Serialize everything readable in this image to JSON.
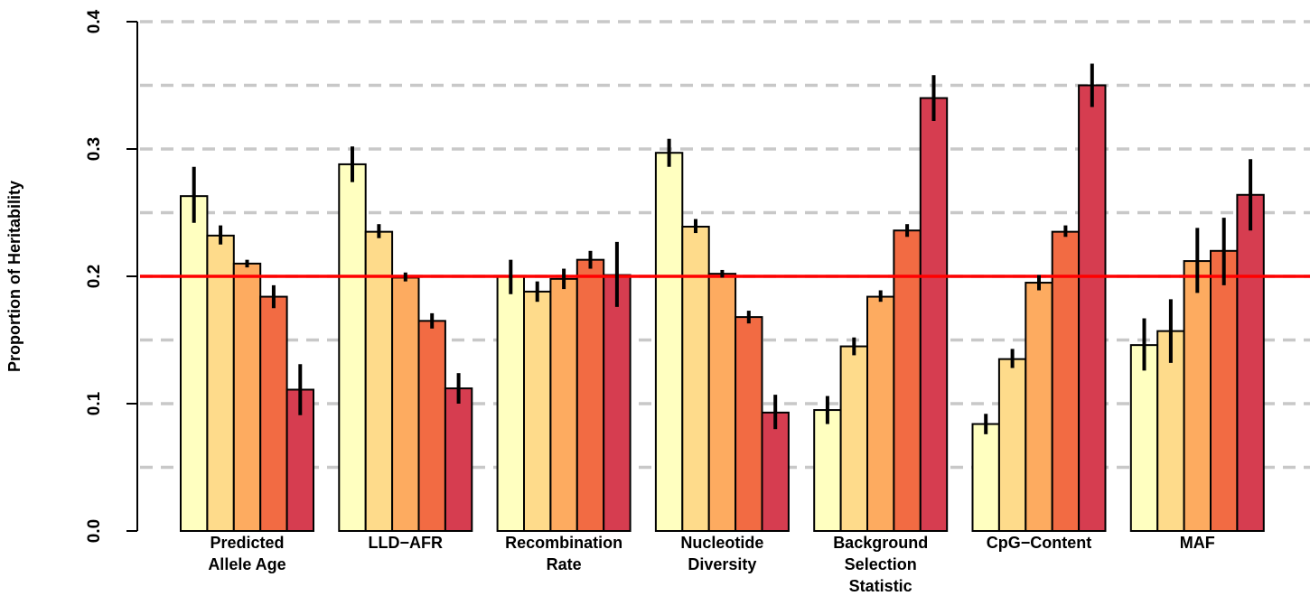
{
  "chart_data": {
    "type": "bar",
    "title": "",
    "xlabel": "",
    "ylabel": "Proportion of Heritability",
    "ylim": [
      0,
      0.4
    ],
    "yticks": [
      {
        "value": 0.0,
        "label": "0.0"
      },
      {
        "value": 0.1,
        "label": "0.1"
      },
      {
        "value": 0.2,
        "label": "0.2"
      },
      {
        "value": 0.3,
        "label": "0.3"
      },
      {
        "value": 0.4,
        "label": "0.4"
      }
    ],
    "grid": {
      "dashed_horizontal": true,
      "step": 0.05,
      "color": "#c8c8c8"
    },
    "reference_line": {
      "value": 0.2,
      "color": "#ff0000"
    },
    "series_colors": [
      "#ffffc0",
      "#fedb8b",
      "#fdab60",
      "#f26b43",
      "#d63d50"
    ],
    "groups": [
      {
        "label_lines": [
          "Predicted",
          "Allele Age"
        ],
        "bars": [
          {
            "value": 0.263,
            "low": 0.242,
            "high": 0.286
          },
          {
            "value": 0.232,
            "low": 0.225,
            "high": 0.24
          },
          {
            "value": 0.21,
            "low": 0.207,
            "high": 0.213
          },
          {
            "value": 0.184,
            "low": 0.175,
            "high": 0.193
          },
          {
            "value": 0.111,
            "low": 0.091,
            "high": 0.131
          }
        ]
      },
      {
        "label_lines": [
          "LLD−AFR"
        ],
        "bars": [
          {
            "value": 0.288,
            "low": 0.274,
            "high": 0.302
          },
          {
            "value": 0.235,
            "low": 0.23,
            "high": 0.241
          },
          {
            "value": 0.199,
            "low": 0.196,
            "high": 0.203
          },
          {
            "value": 0.165,
            "low": 0.159,
            "high": 0.171
          },
          {
            "value": 0.112,
            "low": 0.1,
            "high": 0.124
          }
        ]
      },
      {
        "label_lines": [
          "Recombination",
          "Rate"
        ],
        "bars": [
          {
            "value": 0.2,
            "low": 0.186,
            "high": 0.213
          },
          {
            "value": 0.188,
            "low": 0.18,
            "high": 0.196
          },
          {
            "value": 0.198,
            "low": 0.19,
            "high": 0.206
          },
          {
            "value": 0.213,
            "low": 0.206,
            "high": 0.22
          },
          {
            "value": 0.201,
            "low": 0.176,
            "high": 0.227
          }
        ]
      },
      {
        "label_lines": [
          "Nucleotide",
          "Diversity"
        ],
        "bars": [
          {
            "value": 0.297,
            "low": 0.286,
            "high": 0.308
          },
          {
            "value": 0.239,
            "low": 0.234,
            "high": 0.245
          },
          {
            "value": 0.202,
            "low": 0.199,
            "high": 0.205
          },
          {
            "value": 0.168,
            "low": 0.163,
            "high": 0.173
          },
          {
            "value": 0.093,
            "low": 0.08,
            "high": 0.107
          }
        ]
      },
      {
        "label_lines": [
          "Background",
          "Selection",
          "Statistic"
        ],
        "bars": [
          {
            "value": 0.095,
            "low": 0.084,
            "high": 0.106
          },
          {
            "value": 0.145,
            "low": 0.138,
            "high": 0.152
          },
          {
            "value": 0.184,
            "low": 0.18,
            "high": 0.189
          },
          {
            "value": 0.236,
            "low": 0.231,
            "high": 0.241
          },
          {
            "value": 0.34,
            "low": 0.322,
            "high": 0.358
          }
        ]
      },
      {
        "label_lines": [
          "CpG−Content"
        ],
        "bars": [
          {
            "value": 0.084,
            "low": 0.076,
            "high": 0.092
          },
          {
            "value": 0.135,
            "low": 0.128,
            "high": 0.143
          },
          {
            "value": 0.195,
            "low": 0.189,
            "high": 0.201
          },
          {
            "value": 0.235,
            "low": 0.231,
            "high": 0.24
          },
          {
            "value": 0.35,
            "low": 0.333,
            "high": 0.367
          }
        ]
      },
      {
        "label_lines": [
          "MAF"
        ],
        "bars": [
          {
            "value": 0.146,
            "low": 0.126,
            "high": 0.167
          },
          {
            "value": 0.157,
            "low": 0.132,
            "high": 0.182
          },
          {
            "value": 0.212,
            "low": 0.187,
            "high": 0.238
          },
          {
            "value": 0.22,
            "low": 0.193,
            "high": 0.246
          },
          {
            "value": 0.264,
            "low": 0.236,
            "high": 0.292
          }
        ]
      }
    ]
  }
}
